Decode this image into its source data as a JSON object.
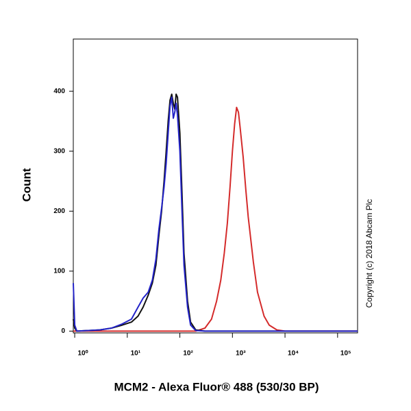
{
  "chart_data": {
    "type": "line",
    "xlabel": "MCM2 - Alexa Fluor® 488 (530/30 BP)",
    "ylabel": "Count",
    "annotation": "Copyright (c) 2018 Abcam Plc",
    "xscale": "log",
    "xlim": [
      0.94,
      240000
    ],
    "xticks": [
      {
        "value": 1,
        "label": "10⁰"
      },
      {
        "value": 10,
        "label": "10¹"
      },
      {
        "value": 100,
        "label": "10²"
      },
      {
        "value": 1000,
        "label": "10³"
      },
      {
        "value": 10000,
        "label": "10⁴"
      },
      {
        "value": 100000,
        "label": "10⁵"
      }
    ],
    "ylim": [
      -3,
      487
    ],
    "yticks": [
      0,
      100,
      200,
      300,
      400
    ],
    "series": [
      {
        "color": "#d42a2a",
        "x": [
          0.94,
          200,
          300,
          400,
          500,
          600,
          700,
          800,
          900,
          1000,
          1100,
          1200,
          1300,
          1400,
          1600,
          1800,
          2000,
          2500,
          3000,
          4000,
          5000,
          7000,
          10000,
          240000
        ],
        "values": [
          0,
          0,
          5,
          20,
          50,
          85,
          130,
          180,
          240,
          300,
          345,
          373,
          365,
          340,
          290,
          235,
          190,
          115,
          65,
          25,
          10,
          2,
          0,
          0
        ]
      },
      {
        "color": "#111111",
        "x": [
          0.94,
          1.0,
          1.1,
          3,
          5,
          8,
          12,
          16,
          20,
          25,
          30,
          35,
          40,
          45,
          50,
          55,
          60,
          65,
          70,
          75,
          80,
          85,
          90,
          100,
          110,
          120,
          140,
          160,
          200,
          300,
          240000
        ],
        "values": [
          20,
          5,
          0,
          2,
          5,
          10,
          15,
          25,
          40,
          60,
          80,
          110,
          160,
          200,
          250,
          300,
          350,
          385,
          395,
          380,
          370,
          395,
          390,
          330,
          230,
          130,
          50,
          15,
          2,
          0,
          0
        ]
      },
      {
        "color": "#2323c8",
        "x": [
          0.94,
          1.0,
          1.1,
          3,
          5,
          8,
          12,
          16,
          20,
          25,
          30,
          35,
          40,
          45,
          50,
          55,
          60,
          65,
          70,
          75,
          80,
          85,
          90,
          100,
          110,
          120,
          140,
          160,
          200,
          300,
          240000
        ],
        "values": [
          80,
          10,
          0,
          2,
          5,
          12,
          20,
          40,
          55,
          65,
          85,
          120,
          170,
          205,
          240,
          280,
          330,
          375,
          390,
          355,
          365,
          380,
          360,
          300,
          200,
          110,
          40,
          10,
          1,
          0,
          0
        ]
      }
    ]
  }
}
